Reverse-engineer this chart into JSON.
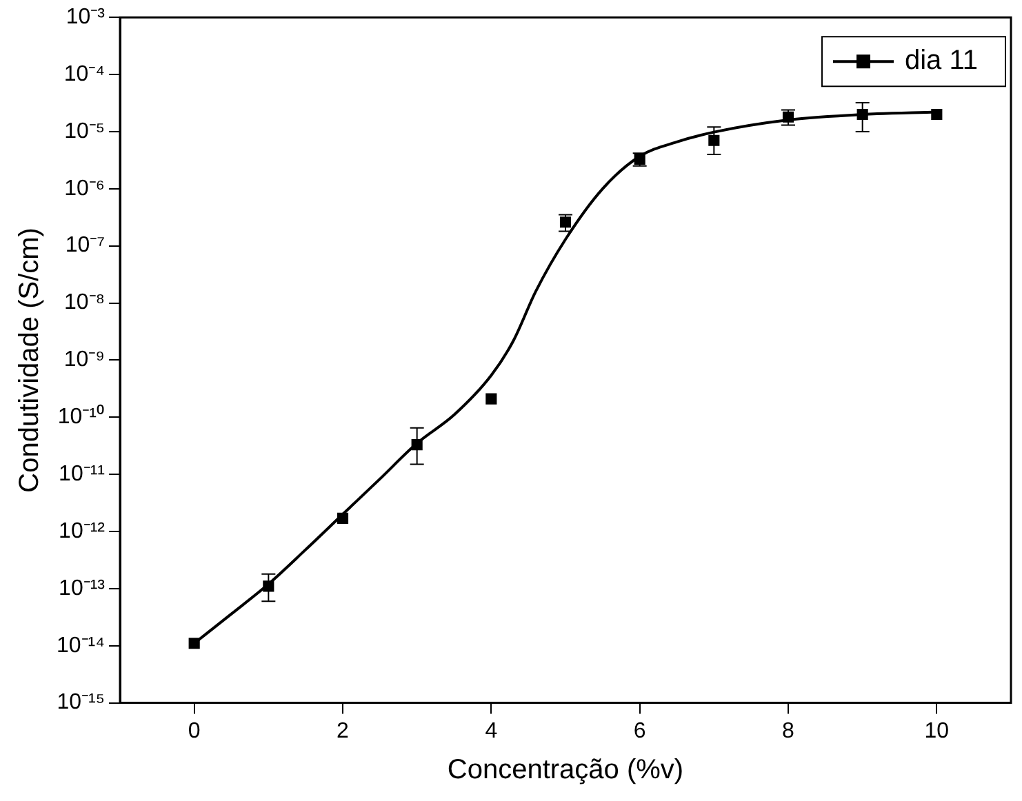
{
  "chart_data": {
    "type": "scatter",
    "xlabel": "Concentração (%v)",
    "ylabel": "Condutividade (S/cm)",
    "log": "y",
    "grid": false,
    "legend": "top right",
    "marker": "square",
    "xlim": [
      -1,
      11
    ],
    "xticks": [
      0,
      2,
      4,
      6,
      8,
      10
    ],
    "ylim": [
      1e-15,
      0.001
    ],
    "yticks": [
      {
        "value": 1e-15,
        "label": "10⁻¹⁵"
      },
      {
        "value": 1e-14,
        "label": "10⁻¹⁴"
      },
      {
        "value": 1e-13,
        "label": "10⁻¹³"
      },
      {
        "value": 1e-12,
        "label": "10⁻¹²"
      },
      {
        "value": 1e-11,
        "label": "10⁻¹¹"
      },
      {
        "value": 1e-10,
        "label": "10⁻¹⁰"
      },
      {
        "value": 1e-09,
        "label": "10⁻⁹"
      },
      {
        "value": 1e-08,
        "label": "10⁻⁸"
      },
      {
        "value": 1e-07,
        "label": "10⁻⁷"
      },
      {
        "value": 1e-06,
        "label": "10⁻⁶"
      },
      {
        "value": 1e-05,
        "label": "10⁻⁵"
      },
      {
        "value": 0.0001,
        "label": "10⁻⁴"
      },
      {
        "value": 0.001,
        "label": "10⁻³"
      }
    ],
    "series": [
      {
        "name": "dia 11",
        "color": "#000000",
        "x": [
          0,
          1,
          2,
          3,
          4,
          5,
          6,
          7,
          8,
          9,
          10
        ],
        "values": [
          1.1e-14,
          1.1e-13,
          1.7e-12,
          3.3e-11,
          2.1e-10,
          2.6e-07,
          3.3e-06,
          7e-06,
          1.8e-05,
          2e-05,
          2e-05
        ],
        "errors": [
          null,
          [
            6e-14,
            1.8e-13
          ],
          null,
          [
            1.5e-11,
            6.5e-11
          ],
          null,
          [
            1.8e-07,
            3.5e-07
          ],
          [
            2.5e-06,
            4.2e-06
          ],
          [
            4e-06,
            1.2e-05
          ],
          [
            1.3e-05,
            2.4e-05
          ],
          [
            1e-05,
            3.2e-05
          ],
          null
        ]
      },
      {
        "type": "line",
        "color": "#000000",
        "marker": "none",
        "line_style": "solid",
        "x": [
          0,
          0.5,
          1,
          1.5,
          2,
          2.5,
          3,
          3.5,
          4,
          4.3,
          4.6,
          5,
          5.5,
          6,
          6.5,
          7,
          8,
          9,
          10
        ],
        "values": [
          1.1e-14,
          3.6e-14,
          1.2e-13,
          4.8e-13,
          2e-12,
          8.3e-12,
          3.5e-11,
          1.1e-10,
          5.4e-10,
          2.2e-09,
          1.6e-08,
          1.3e-07,
          1e-06,
          3.7e-06,
          6.6e-06,
          9.8e-06,
          1.6e-05,
          2e-05,
          2.2e-05
        ]
      }
    ]
  }
}
